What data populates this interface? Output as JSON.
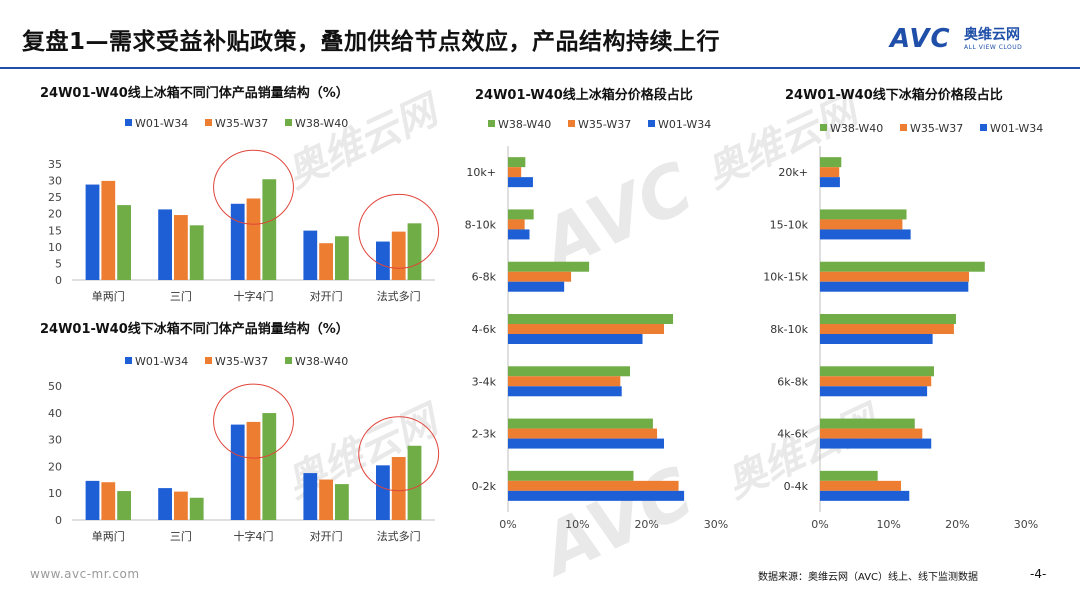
{
  "header": {
    "title": "复盘1—需求受益补贴政策，叠加供给节点效应，产品结构持续上行",
    "logo_mark": "AVC",
    "logo_cn": "奥维云网",
    "logo_en": "ALL VIEW CLOUD",
    "accent_color": "#1f4fa8"
  },
  "footer": {
    "url": "www.avc-mr.com",
    "source": "数据来源：奥维云网（AVC）线上、线下监测数据",
    "page": "-4-"
  },
  "colors": {
    "W01-W34": "#1f5fd6",
    "W35-W37": "#ed7d31",
    "W38-W40": "#70ad47",
    "highlight": "#e0453b"
  },
  "chart_data": [
    {
      "type": "bar",
      "title": "24W01-W40线上冰箱不同门体产品销量结构（%）",
      "categories": [
        "单两门",
        "三门",
        "十字4门",
        "对开门",
        "法式多门"
      ],
      "series": [
        {
          "name": "W01-W34",
          "values": [
            28.8,
            21.3,
            23.0,
            14.9,
            11.6
          ]
        },
        {
          "name": "W35-W37",
          "values": [
            29.9,
            19.6,
            24.6,
            11.1,
            14.6
          ]
        },
        {
          "name": "W38-W40",
          "values": [
            22.6,
            16.5,
            30.4,
            13.2,
            17.1
          ]
        }
      ],
      "ylim": [
        0,
        35
      ],
      "yticks": [
        0,
        5,
        10,
        15,
        20,
        25,
        30,
        35
      ],
      "legend": "top",
      "highlighted_categories": [
        "十字4门",
        "法式多门"
      ]
    },
    {
      "type": "bar",
      "title": "24W01-W40线下冰箱不同门体产品销量结构（%）",
      "categories": [
        "单两门",
        "三门",
        "十字4门",
        "对开门",
        "法式多门"
      ],
      "series": [
        {
          "name": "W01-W34",
          "values": [
            14.6,
            11.9,
            35.6,
            17.5,
            20.4
          ]
        },
        {
          "name": "W35-W37",
          "values": [
            14.1,
            10.6,
            36.6,
            15.1,
            23.5
          ]
        },
        {
          "name": "W38-W40",
          "values": [
            10.8,
            8.3,
            39.9,
            13.4,
            27.7
          ]
        }
      ],
      "ylim": [
        0,
        50
      ],
      "yticks": [
        0,
        10,
        20,
        30,
        40,
        50
      ],
      "legend": "top",
      "highlighted_categories": [
        "十字4门",
        "法式多门"
      ]
    },
    {
      "type": "bar",
      "orientation": "horizontal",
      "title": "24W01-W40线上冰箱分价格段占比",
      "categories": [
        "10k+",
        "8-10k",
        "6-8k",
        "4-6k",
        "3-4k",
        "2-3k",
        "0-2k"
      ],
      "series": [
        {
          "name": "W38-W40",
          "values": [
            2.5,
            3.7,
            11.7,
            23.8,
            17.6,
            20.9,
            18.1
          ]
        },
        {
          "name": "W35-W37",
          "values": [
            1.9,
            2.4,
            9.1,
            22.5,
            16.2,
            21.5,
            24.6
          ]
        },
        {
          "name": "W01-W34",
          "values": [
            3.6,
            3.1,
            8.1,
            19.4,
            16.4,
            22.5,
            25.4
          ]
        }
      ],
      "xlim": [
        0,
        30
      ],
      "xticks": [
        "0%",
        "10%",
        "20%",
        "30%"
      ],
      "legend": "top"
    },
    {
      "type": "bar",
      "orientation": "horizontal",
      "title": "24W01-W40线下冰箱分价格段占比",
      "categories": [
        "20k+",
        "15-10k",
        "10k-15k",
        "8k-10k",
        "6k-8k",
        "4k-6k",
        "0-4k"
      ],
      "series": [
        {
          "name": "W38-W40",
          "values": [
            3.1,
            12.6,
            24.0,
            19.8,
            16.6,
            13.8,
            8.4
          ]
        },
        {
          "name": "W35-W37",
          "values": [
            2.8,
            12.0,
            21.7,
            19.5,
            16.2,
            14.9,
            11.8
          ]
        },
        {
          "name": "W01-W34",
          "values": [
            2.9,
            13.2,
            21.6,
            16.4,
            15.6,
            16.2,
            13.0
          ]
        }
      ],
      "xlim": [
        0,
        30
      ],
      "xticks": [
        "0%",
        "10%",
        "20%",
        "30%"
      ],
      "legend": "top"
    }
  ]
}
